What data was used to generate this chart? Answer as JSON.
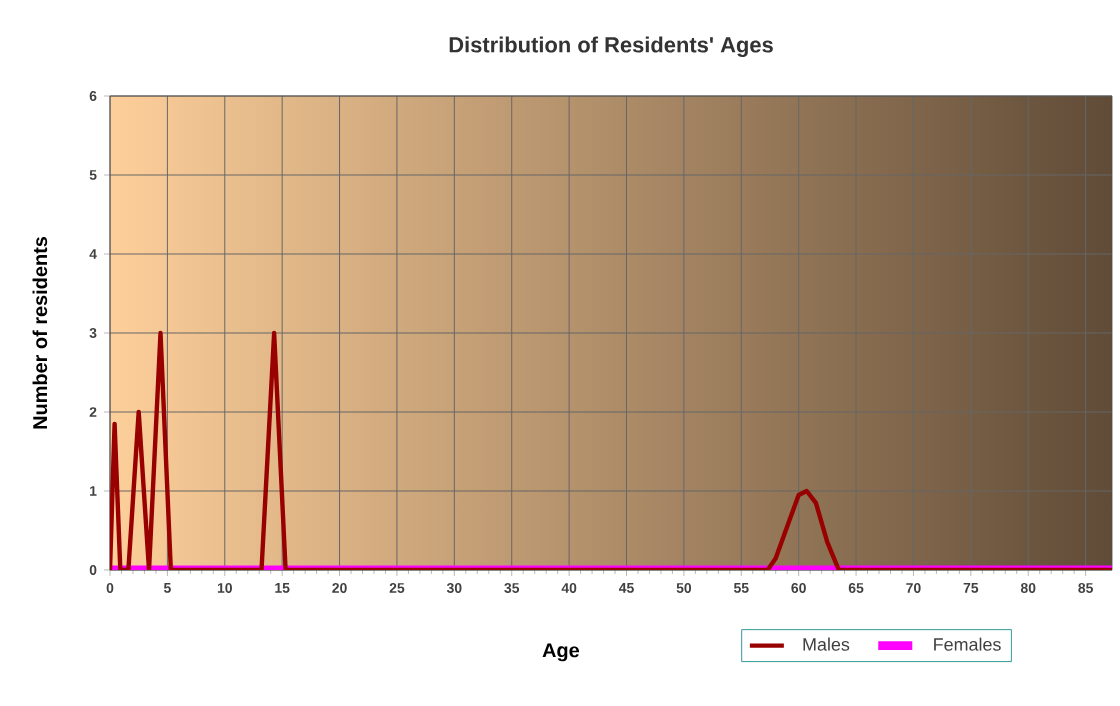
{
  "chart_data": {
    "type": "line",
    "title": "Distribution of Residents' Ages",
    "xlabel": "Age",
    "ylabel": "Number of residents",
    "series": [
      {
        "name": "Males",
        "color": "#990000",
        "x": [
          0,
          0.4,
          0.9,
          1.6,
          2.5,
          3.4,
          4.4,
          5.3,
          13.2,
          14.3,
          15.3,
          57.3,
          58,
          59,
          60,
          60.7,
          61.5,
          62.5,
          63.5,
          87.3
        ],
        "values": [
          0,
          1.85,
          0,
          0,
          2,
          0,
          3,
          0,
          0,
          3,
          0,
          0,
          0.15,
          0.55,
          0.95,
          1,
          0.85,
          0.35,
          0,
          0
        ]
      },
      {
        "name": "Females",
        "color": "#ff00ff",
        "x": [
          0,
          87.3
        ],
        "values": [
          0,
          0
        ]
      }
    ],
    "xlim": [
      0,
      87.3
    ],
    "xticks": [
      0,
      5,
      10,
      15,
      20,
      25,
      30,
      35,
      40,
      45,
      50,
      55,
      60,
      65,
      70,
      75,
      80,
      85
    ],
    "ylim": [
      0,
      6
    ],
    "yticks": [
      0,
      1,
      2,
      3,
      4,
      5,
      6
    ],
    "grid": true,
    "legend": "bottom right"
  }
}
